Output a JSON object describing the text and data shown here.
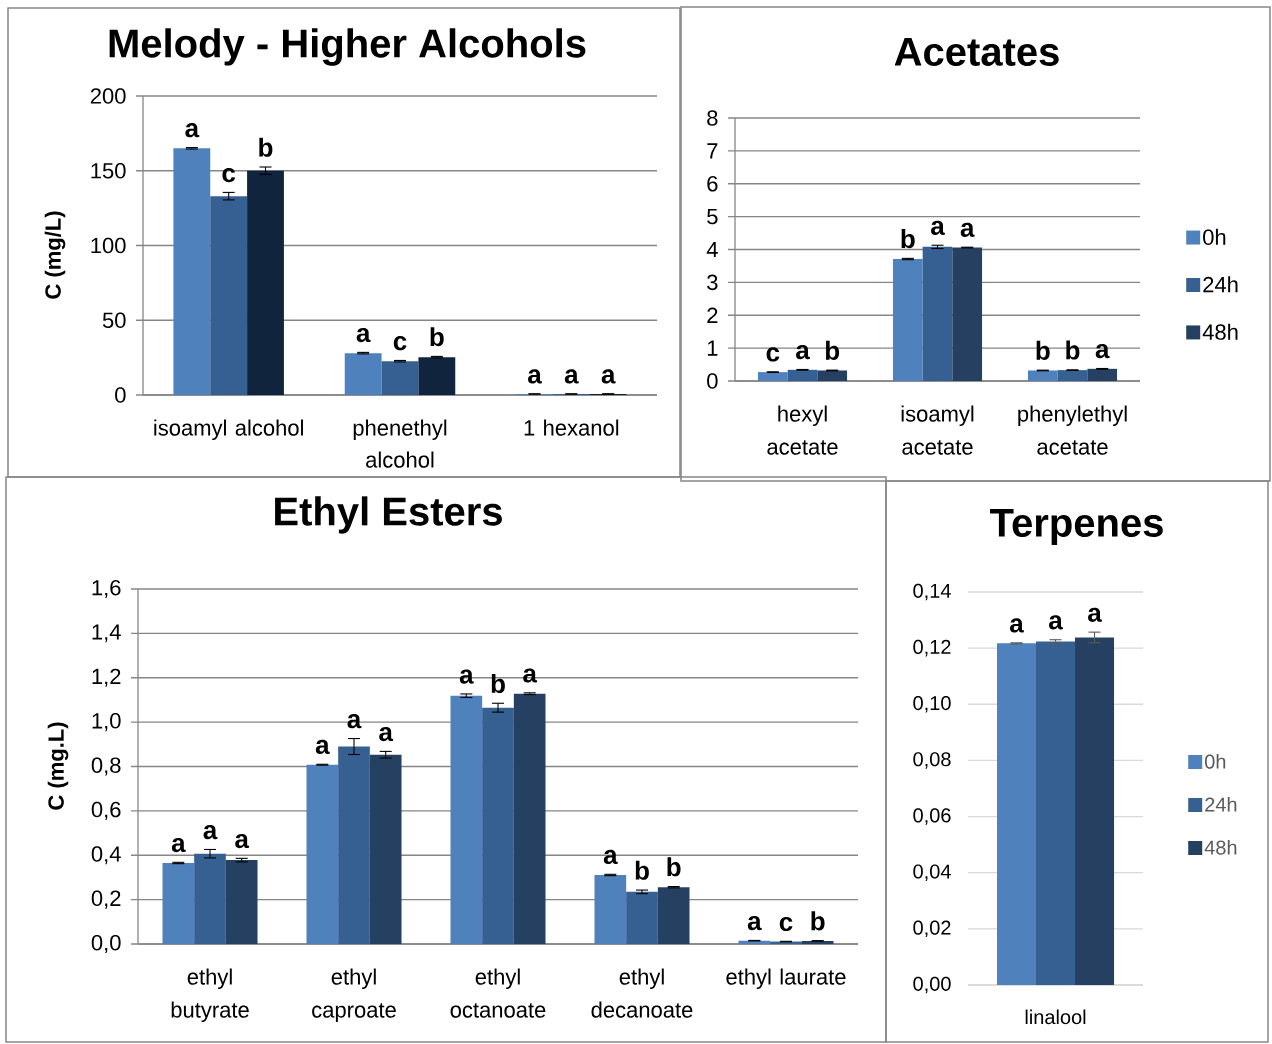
{
  "chart_data": [
    {
      "type": "bar",
      "title": "Melody - Higher Alcohols",
      "ylabel": "C (mg/L)",
      "categories": [
        "isoamyl alcohol",
        "phenethyl alcohol",
        "1 hexanol"
      ],
      "series": [
        {
          "color": "#4f81bd",
          "values": [
            165,
            28,
            0.7
          ],
          "errors": [
            0.5,
            0.5,
            0.1
          ],
          "value_labels": [
            "a",
            "a",
            "a"
          ]
        },
        {
          "color": "#376092",
          "values": [
            133,
            22.6,
            0.7
          ],
          "errors": [
            2.5,
            0.5,
            0.1
          ],
          "value_labels": [
            "c",
            "c",
            "a"
          ]
        },
        {
          "color": "#10243e",
          "values": [
            150,
            25.3,
            0.7
          ],
          "errors": [
            2.5,
            0.5,
            0.1
          ],
          "value_labels": [
            "b",
            "b",
            "a"
          ]
        }
      ],
      "ylim": [
        0,
        200
      ],
      "yticks": [
        0,
        50,
        100,
        150,
        200
      ],
      "grid": "y"
    },
    {
      "type": "bar",
      "title": "Acetates",
      "categories": [
        "hexyl acetate",
        "isoamyl acetate",
        "phenylethyl acetate"
      ],
      "series": [
        {
          "name": "0h",
          "color": "#4f81bd",
          "values": [
            0.27,
            3.71,
            0.32
          ],
          "errors": [
            0.01,
            0.02,
            0.01
          ],
          "value_labels": [
            "c",
            "b",
            "b"
          ]
        },
        {
          "name": "24h",
          "color": "#376092",
          "values": [
            0.34,
            4.08,
            0.33
          ],
          "errors": [
            0.01,
            0.05,
            0.01
          ],
          "value_labels": [
            "a",
            "a",
            "b"
          ]
        },
        {
          "name": "48h",
          "color": "#264061",
          "values": [
            0.32,
            4.06,
            0.37
          ],
          "errors": [
            0.01,
            0.01,
            0.01
          ],
          "value_labels": [
            "b",
            "a",
            "a"
          ]
        }
      ],
      "ylim": [
        0,
        8
      ],
      "yticks": [
        0,
        1,
        2,
        3,
        4,
        5,
        6,
        7,
        8
      ],
      "grid": "y",
      "legend": "right"
    },
    {
      "type": "bar",
      "title": "Ethyl Esters",
      "ylabel": "C (mg.L)",
      "categories": [
        "ethyl butyrate",
        "ethyl caproate",
        "ethyl octanoate",
        "ethyl decanoate",
        "ethyl laurate"
      ],
      "series": [
        {
          "color": "#4f81bd",
          "values": [
            0.365,
            0.808,
            1.119,
            0.311,
            0.015
          ],
          "errors": [
            0.003,
            0.002,
            0.008,
            0.003,
            0.001
          ],
          "value_labels": [
            "a",
            "a",
            "a",
            "a",
            "a"
          ]
        },
        {
          "color": "#376092",
          "values": [
            0.407,
            0.89,
            1.065,
            0.235,
            0.011
          ],
          "errors": [
            0.019,
            0.036,
            0.02,
            0.008,
            0.001
          ],
          "value_labels": [
            "a",
            "a",
            "b",
            "b",
            "c"
          ]
        },
        {
          "color": "#264061",
          "values": [
            0.378,
            0.853,
            1.128,
            0.256,
            0.014
          ],
          "errors": [
            0.008,
            0.015,
            0.004,
            0.003,
            0.001
          ],
          "value_labels": [
            "a",
            "a",
            "a",
            "b",
            "b"
          ]
        }
      ],
      "ylim": [
        0,
        1.6
      ],
      "yticks": [
        {
          "value": 0,
          "label": "0,0"
        },
        {
          "value": 0.2,
          "label": "0,2"
        },
        {
          "value": 0.4,
          "label": "0,4"
        },
        {
          "value": 0.6,
          "label": "0,6"
        },
        {
          "value": 0.8,
          "label": "0,8"
        },
        {
          "value": 1.0,
          "label": "1,0"
        },
        {
          "value": 1.2,
          "label": "1,2"
        },
        {
          "value": 1.4,
          "label": "1,4"
        },
        {
          "value": 1.6,
          "label": "1,6"
        }
      ],
      "grid": "y"
    },
    {
      "type": "bar",
      "title": "Terpenes",
      "categories": [
        "linalool"
      ],
      "series": [
        {
          "name": "0h",
          "color": "#4f81bd",
          "values": [
            0.1217
          ],
          "errors": [
            0.0002
          ],
          "value_labels": [
            "a"
          ]
        },
        {
          "name": "24h",
          "color": "#376092",
          "values": [
            0.1224
          ],
          "errors": [
            0.0006
          ],
          "value_labels": [
            "a"
          ]
        },
        {
          "name": "48h",
          "color": "#264061",
          "values": [
            0.1238
          ],
          "errors": [
            0.0019
          ],
          "value_labels": [
            "a"
          ]
        }
      ],
      "ylim": [
        0,
        0.14
      ],
      "yticks": [
        {
          "value": 0,
          "label": "0,00"
        },
        {
          "value": 0.02,
          "label": "0,02"
        },
        {
          "value": 0.04,
          "label": "0,04"
        },
        {
          "value": 0.06,
          "label": "0,06"
        },
        {
          "value": 0.08,
          "label": "0,08"
        },
        {
          "value": 0.1,
          "label": "0,10"
        },
        {
          "value": 0.12,
          "label": "0,12"
        },
        {
          "value": 0.14,
          "label": "0,14"
        }
      ],
      "grid": "y",
      "legend": "right"
    }
  ]
}
